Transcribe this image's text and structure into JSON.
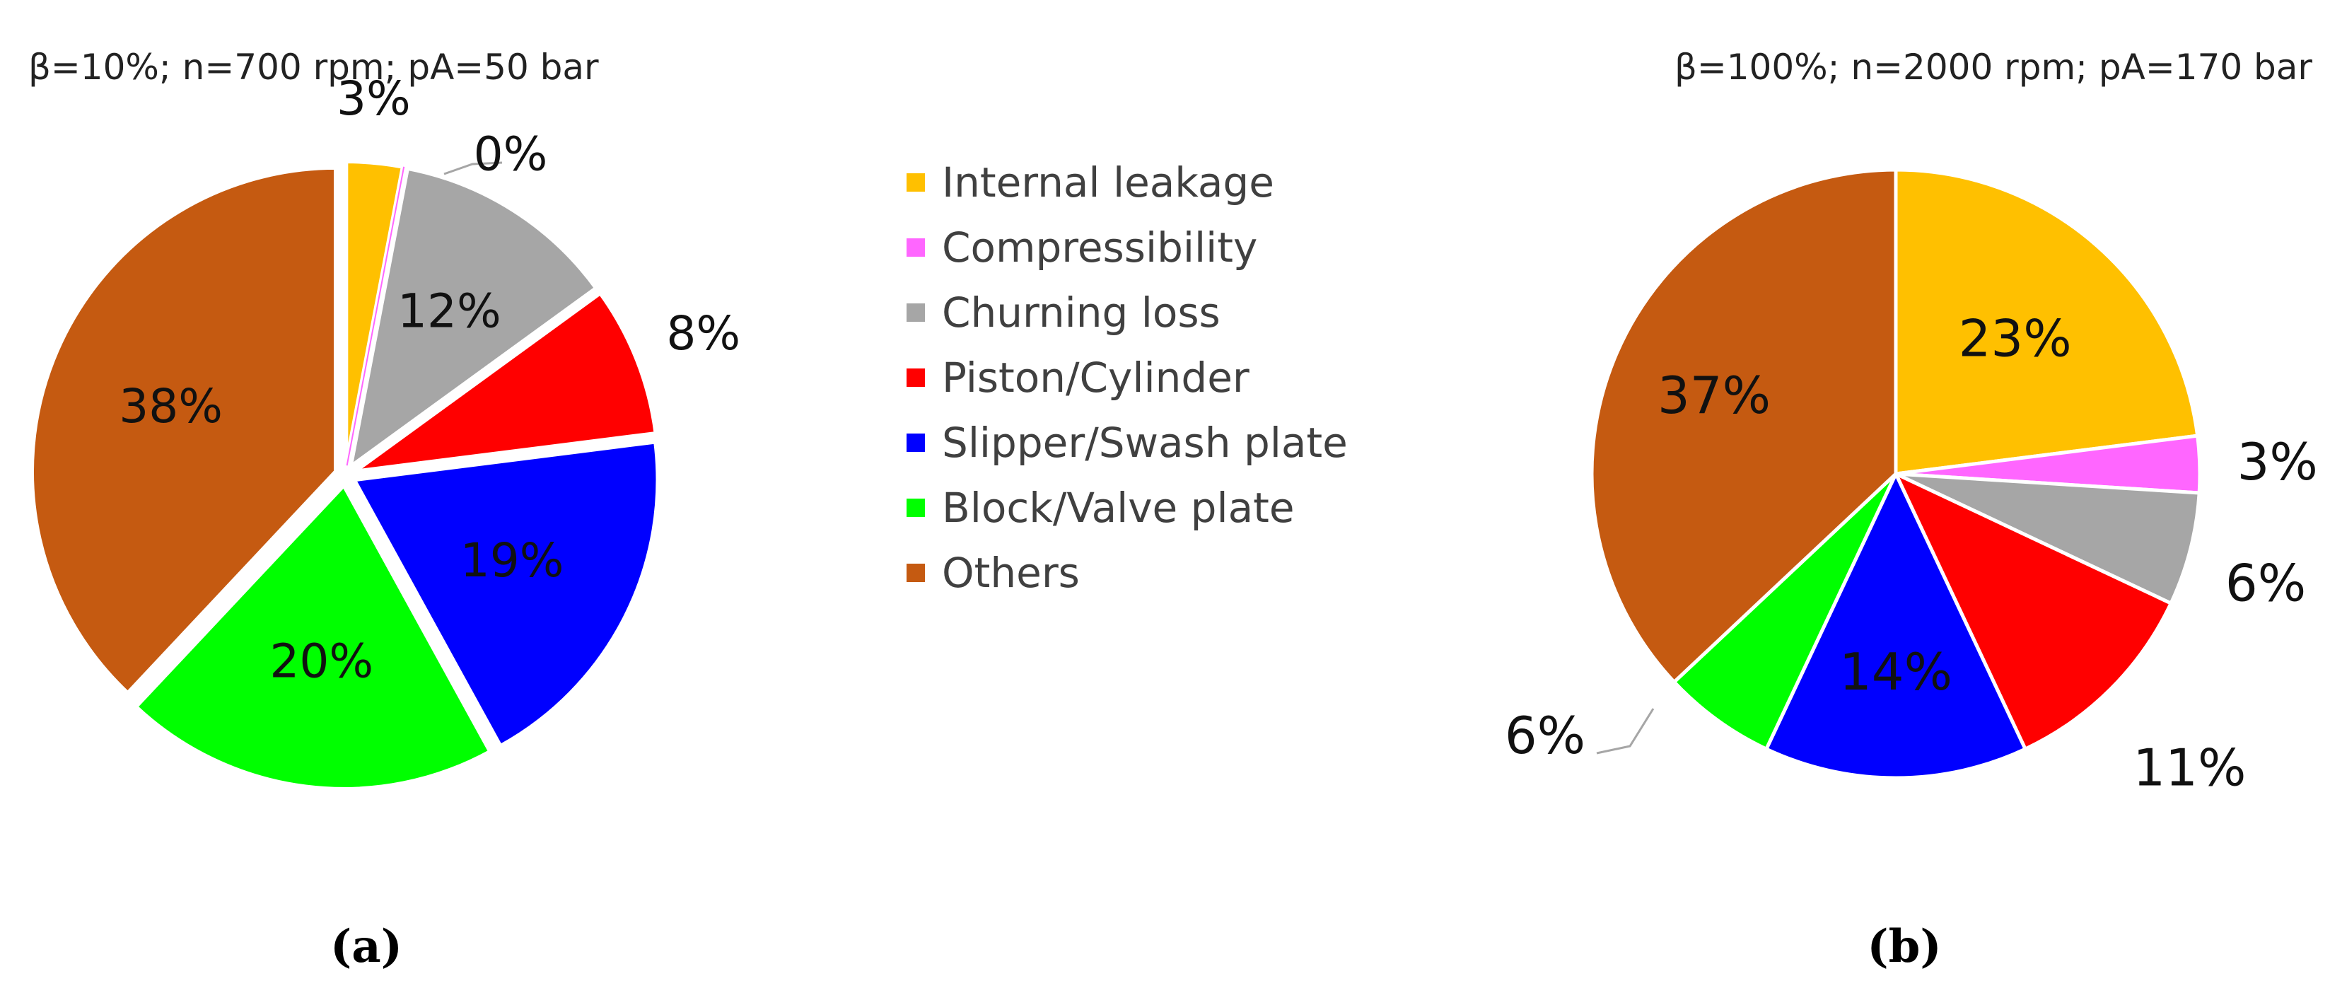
{
  "chart_data": [
    {
      "type": "pie",
      "title": "β=10%; n=700 rpm; pA=50 bar",
      "panel_label": "(a)",
      "categories": [
        "Internal leakage",
        "Compressibility",
        "Churning loss",
        "Piston/Cylinder",
        "Slipper/Swash plate",
        "Block/Valve plate",
        "Others"
      ],
      "values": [
        3,
        0,
        12,
        8,
        19,
        20,
        38
      ],
      "data_labels": [
        "3%",
        "0%",
        "12%",
        "8%",
        "19%",
        "20%",
        "38%"
      ],
      "exploded": true
    },
    {
      "type": "pie",
      "title": "β=100%; n=2000 rpm; pA=170 bar",
      "panel_label": "(b)",
      "categories": [
        "Internal leakage",
        "Compressibility",
        "Churning loss",
        "Piston/Cylinder",
        "Slipper/Swash plate",
        "Block/Valve plate",
        "Others"
      ],
      "values": [
        23,
        3,
        6,
        11,
        14,
        6,
        37
      ],
      "data_labels": [
        "23%",
        "3%",
        "6%",
        "11%",
        "14%",
        "6%",
        "37%"
      ],
      "exploded": false
    }
  ],
  "legend": {
    "placement": "center",
    "items": [
      {
        "label": "Internal leakage",
        "color": "#FFC000"
      },
      {
        "label": "Compressibility",
        "color": "#FF66FF"
      },
      {
        "label": "Churning loss",
        "color": "#A6A6A6"
      },
      {
        "label": "Piston/Cylinder",
        "color": "#FF0000"
      },
      {
        "label": "Slipper/Swash plate",
        "color": "#0000FF"
      },
      {
        "label": "Block/Valve plate",
        "color": "#00FF00"
      },
      {
        "label": "Others",
        "color": "#C55A11"
      }
    ]
  }
}
